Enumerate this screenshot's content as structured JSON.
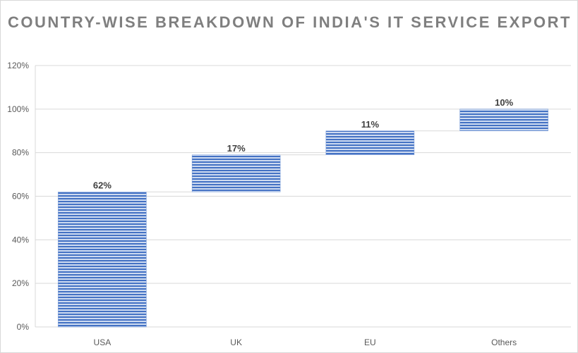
{
  "chart_data": {
    "type": "waterfall",
    "title": "COUNTRY-WISE BREAKDOWN OF INDIA'S IT SERVICE EXPORT",
    "categories": [
      "USA",
      "UK",
      "EU",
      "Others"
    ],
    "values": [
      62,
      17,
      11,
      10
    ],
    "data_labels": [
      "62%",
      "17%",
      "11%",
      "10%"
    ],
    "yticks": [
      "0%",
      "20%",
      "40%",
      "60%",
      "80%",
      "100%",
      "120%"
    ],
    "ylim": [
      0,
      120
    ],
    "grid": true,
    "legend": "none",
    "bar_color": "#4472C4"
  }
}
